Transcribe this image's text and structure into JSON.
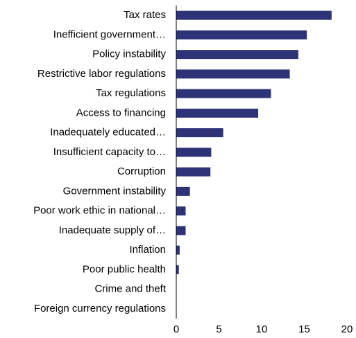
{
  "chart_data": {
    "type": "bar",
    "orientation": "horizontal",
    "categories": [
      "Tax rates",
      "Inefficient government…",
      "Policy instability",
      "Restrictive labor regulations",
      "Tax regulations",
      "Access to financing",
      "Inadequately educated…",
      "Insufficient capacity to…",
      "Corruption",
      "Government instability",
      "Poor work ethic in national…",
      "Inadequate supply of…",
      "Inflation",
      "Poor public health",
      "Crime and theft",
      "Foreign currency regulations"
    ],
    "values": [
      18.2,
      15.3,
      14.3,
      13.3,
      11.1,
      9.6,
      5.5,
      4.1,
      4.0,
      1.6,
      1.1,
      1.1,
      0.4,
      0.3,
      0,
      0
    ],
    "xlim": [
      0,
      20
    ],
    "xticks": [
      "0",
      "5",
      "10",
      "15",
      "20"
    ],
    "title": "",
    "xlabel": "",
    "ylabel": "",
    "grid": false,
    "legend": "none",
    "colors": {
      "bar": "#2e3378",
      "axis": "#000000"
    }
  }
}
